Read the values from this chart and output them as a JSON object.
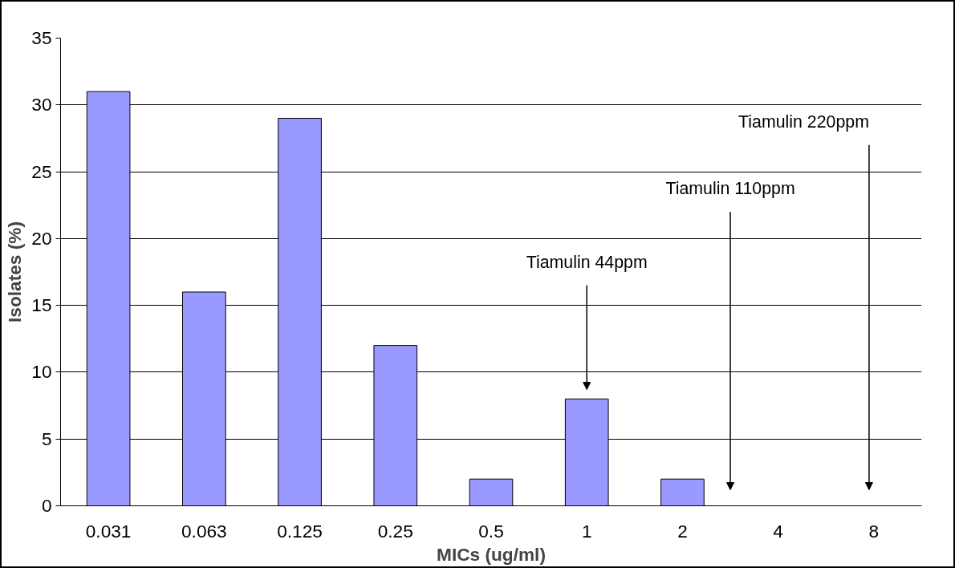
{
  "chart_data": {
    "type": "bar",
    "xlabel": "MICs (ug/ml)",
    "ylabel": "Isolates (%)",
    "categories": [
      "0.031",
      "0.063",
      "0.125",
      "0.25",
      "0.5",
      "1",
      "2",
      "4",
      "8"
    ],
    "values": [
      31,
      16,
      29,
      12,
      2,
      8,
      2,
      0,
      0
    ],
    "color": "#9999ff",
    "ylim": [
      0,
      35
    ],
    "yticks": [
      0,
      5,
      10,
      15,
      20,
      25,
      30,
      35
    ],
    "grid": "y",
    "annotations": [
      "Tiamulin 44ppm",
      "Tiamulin 110ppm",
      "Tiamulin 220ppm"
    ]
  }
}
